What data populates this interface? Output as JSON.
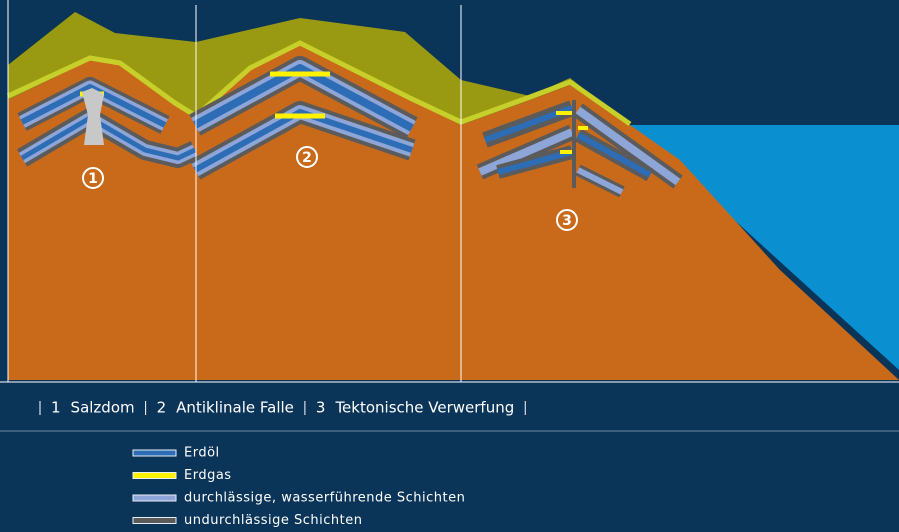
{
  "markers": [
    "1",
    "2",
    "3"
  ],
  "caption": [
    {
      "number": "1",
      "label": "Salzdom"
    },
    {
      "number": "2",
      "label": "Antiklinale Falle"
    },
    {
      "number": "3",
      "label": "Tektonische Verwerfung"
    }
  ],
  "legend": [
    {
      "label": "Erdöl",
      "color": "#2c6db6"
    },
    {
      "label": "Erdgas",
      "color": "#fff200"
    },
    {
      "label": "durchlässige, wasserführende Schichten",
      "color": "#8ea5d8"
    },
    {
      "label": "undurchlässige Schichten",
      "color": "#5b5b5b"
    }
  ]
}
